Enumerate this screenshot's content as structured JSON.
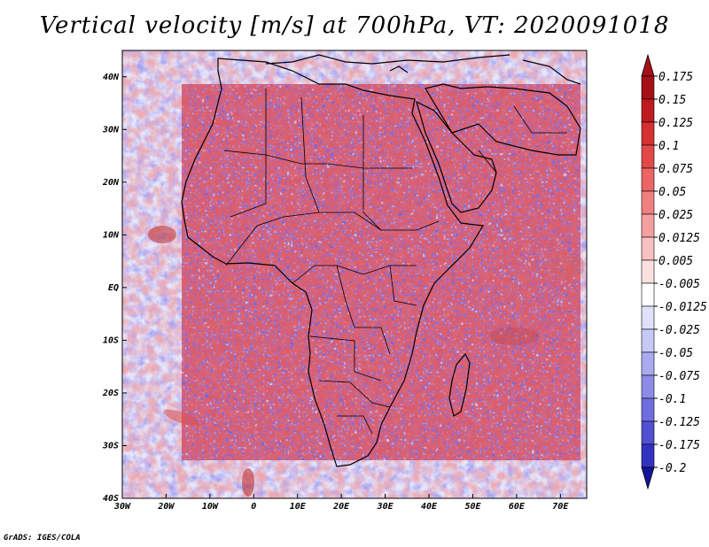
{
  "title": "Vertical velocity [m/s] at 700hPa, VT: 2020091018",
  "credit": "GrADS: IGES/COLA",
  "map": {
    "lon_range": [
      -30,
      76
    ],
    "lat_range": [
      -40,
      45
    ],
    "lon_ticks": [
      {
        "value": -30,
        "label": "30W"
      },
      {
        "value": -20,
        "label": "20W"
      },
      {
        "value": -10,
        "label": "10W"
      },
      {
        "value": 0,
        "label": "0"
      },
      {
        "value": 10,
        "label": "10E"
      },
      {
        "value": 20,
        "label": "20E"
      },
      {
        "value": 30,
        "label": "30E"
      },
      {
        "value": 40,
        "label": "40E"
      },
      {
        "value": 50,
        "label": "50E"
      },
      {
        "value": 60,
        "label": "60E"
      },
      {
        "value": 70,
        "label": "70E"
      }
    ],
    "lat_ticks": [
      {
        "value": 40,
        "label": "40N"
      },
      {
        "value": 30,
        "label": "30N"
      },
      {
        "value": 20,
        "label": "20N"
      },
      {
        "value": 10,
        "label": "10N"
      },
      {
        "value": 0,
        "label": "EQ"
      },
      {
        "value": -10,
        "label": "10S"
      },
      {
        "value": -20,
        "label": "20S"
      },
      {
        "value": -30,
        "label": "30S"
      },
      {
        "value": -40,
        "label": "40S"
      }
    ]
  },
  "colorbar": {
    "levels": [
      {
        "label": "0.175",
        "color": "#a50f15"
      },
      {
        "label": "0.15",
        "color": "#c01a20"
      },
      {
        "label": "0.125",
        "color": "#d73030"
      },
      {
        "label": "0.1",
        "color": "#e34848"
      },
      {
        "label": "0.075",
        "color": "#ec6464"
      },
      {
        "label": "0.05",
        "color": "#f08080"
      },
      {
        "label": "0.025",
        "color": "#f4a0a0"
      },
      {
        "label": "0.0125",
        "color": "#f8c0c0"
      },
      {
        "label": "0.005",
        "color": "#fce0e0"
      },
      {
        "label": "-0.005",
        "color": "#ffffff"
      },
      {
        "label": "-0.0125",
        "color": "#e0e0fa"
      },
      {
        "label": "-0.025",
        "color": "#c8c8f5"
      },
      {
        "label": "-0.05",
        "color": "#aaaaf0"
      },
      {
        "label": "-0.075",
        "color": "#8c8ce8"
      },
      {
        "label": "-0.1",
        "color": "#6e6ee0"
      },
      {
        "label": "-0.125",
        "color": "#5050d2"
      },
      {
        "label": "-0.175",
        "color": "#3232c0"
      },
      {
        "label": "-0.2",
        "color": "#1e1eaa"
      }
    ],
    "top_color": "#a50f15",
    "bottom_color": "#14149a"
  }
}
